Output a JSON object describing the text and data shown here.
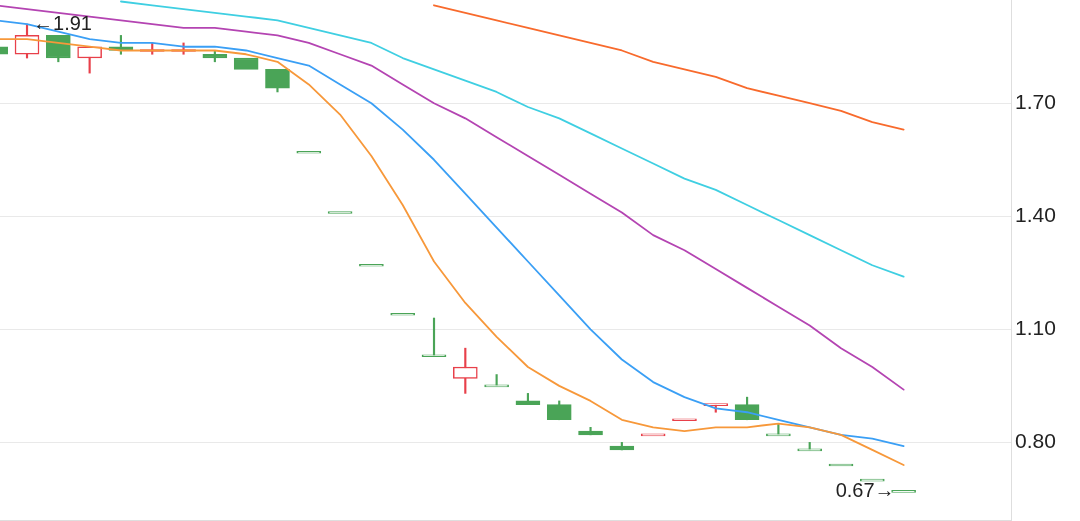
{
  "chart_data": {
    "type": "candlestick",
    "categories": [
      null,
      null,
      null,
      null,
      null,
      null,
      null,
      null,
      null,
      null,
      null,
      null,
      null,
      null,
      null,
      null,
      null,
      null,
      null,
      null,
      null,
      null,
      null,
      null,
      null,
      null,
      null,
      null,
      null,
      null
    ],
    "ohlc": [
      [
        1.85,
        1.85,
        1.83,
        1.83
      ],
      [
        1.83,
        1.91,
        1.82,
        1.88
      ],
      [
        1.88,
        1.88,
        1.81,
        1.82
      ],
      [
        1.82,
        1.85,
        1.78,
        1.85
      ],
      [
        1.85,
        1.88,
        1.83,
        1.84
      ],
      [
        1.84,
        1.86,
        1.83,
        1.84
      ],
      [
        1.84,
        1.86,
        1.83,
        1.84
      ],
      [
        1.83,
        1.84,
        1.81,
        1.82
      ],
      [
        1.82,
        1.82,
        1.79,
        1.79
      ],
      [
        1.79,
        1.79,
        1.73,
        1.74
      ],
      [
        1.57,
        1.57,
        1.57,
        1.57
      ],
      [
        1.41,
        1.41,
        1.41,
        1.41
      ],
      [
        1.27,
        1.27,
        1.27,
        1.27
      ],
      [
        1.14,
        1.14,
        1.14,
        1.14
      ],
      [
        1.03,
        1.13,
        1.03,
        1.03
      ],
      [
        0.97,
        1.05,
        0.93,
        1.0
      ],
      [
        0.95,
        0.98,
        0.95,
        0.95
      ],
      [
        0.91,
        0.93,
        0.9,
        0.9
      ],
      [
        0.9,
        0.91,
        0.86,
        0.86
      ],
      [
        0.83,
        0.84,
        0.82,
        0.82
      ],
      [
        0.79,
        0.8,
        0.78,
        0.78
      ],
      [
        0.82,
        0.82,
        0.82,
        0.82
      ],
      [
        0.86,
        0.86,
        0.86,
        0.86
      ],
      [
        0.9,
        0.9,
        0.88,
        0.9
      ],
      [
        0.9,
        0.92,
        0.86,
        0.86
      ],
      [
        0.82,
        0.85,
        0.82,
        0.82
      ],
      [
        0.78,
        0.8,
        0.78,
        0.78
      ],
      [
        0.74,
        0.74,
        0.74,
        0.74
      ],
      [
        0.7,
        0.7,
        0.7,
        0.7
      ],
      [
        0.67,
        0.67,
        0.67,
        0.67
      ]
    ],
    "colors": [
      "#4aa457",
      "#e8404a",
      "#4aa457",
      "#e8404a",
      "#4aa457",
      "#e8404a",
      "#e8404a",
      "#4aa457",
      "#4aa457",
      "#4aa457",
      "#4aa457",
      "#4aa457",
      "#4aa457",
      "#4aa457",
      "#4aa457",
      "#e8404a",
      "#4aa457",
      "#4aa457",
      "#4aa457",
      "#4aa457",
      "#4aa457",
      "#e8404a",
      "#e8404a",
      "#e8404a",
      "#4aa457",
      "#4aa457",
      "#4aa457",
      "#4aa457",
      "#4aa457",
      "#4aa457"
    ],
    "series": [
      {
        "type": "line",
        "color": "#f7983a",
        "values": [
          1.87,
          1.87,
          1.86,
          1.85,
          1.84,
          1.84,
          1.84,
          1.84,
          1.83,
          1.81,
          1.75,
          1.67,
          1.56,
          1.43,
          1.28,
          1.17,
          1.08,
          1.0,
          0.95,
          0.91,
          0.86,
          0.84,
          0.83,
          0.84,
          0.84,
          0.85,
          0.84,
          0.82,
          0.78,
          0.74
        ]
      },
      {
        "type": "line",
        "color": "#3a9ff5",
        "values": [
          1.92,
          1.91,
          1.89,
          1.87,
          1.86,
          1.86,
          1.85,
          1.85,
          1.84,
          1.82,
          1.8,
          1.75,
          1.7,
          1.63,
          1.55,
          1.46,
          1.37,
          1.28,
          1.19,
          1.1,
          1.02,
          0.96,
          0.92,
          0.89,
          0.88,
          0.86,
          0.84,
          0.82,
          0.81,
          0.79
        ]
      },
      {
        "type": "line",
        "color": "#b444b2",
        "values": [
          1.96,
          1.95,
          1.94,
          1.93,
          1.92,
          1.91,
          1.9,
          1.9,
          1.89,
          1.88,
          1.86,
          1.83,
          1.8,
          1.75,
          1.7,
          1.66,
          1.61,
          1.56,
          1.51,
          1.46,
          1.41,
          1.35,
          1.31,
          1.26,
          1.21,
          1.16,
          1.11,
          1.05,
          1.0,
          0.94
        ]
      },
      {
        "type": "line",
        "color": "#3fcfe2",
        "values": [
          null,
          null,
          null,
          null,
          1.97,
          1.96,
          1.95,
          1.94,
          1.93,
          1.92,
          1.9,
          1.88,
          1.86,
          1.82,
          1.79,
          1.76,
          1.73,
          1.69,
          1.66,
          1.62,
          1.58,
          1.54,
          1.5,
          1.47,
          1.43,
          1.39,
          1.35,
          1.31,
          1.27,
          1.24
        ]
      },
      {
        "type": "line",
        "color": "#f86a2c",
        "values": [
          null,
          null,
          null,
          null,
          null,
          null,
          null,
          null,
          null,
          null,
          null,
          null,
          null,
          null,
          1.96,
          1.94,
          1.92,
          1.9,
          1.88,
          1.86,
          1.84,
          1.81,
          1.79,
          1.77,
          1.74,
          1.72,
          1.7,
          1.68,
          1.65,
          1.63
        ]
      }
    ],
    "ylim": [
      0.594,
      1.974
    ],
    "yticks": [
      {
        "value": 0.8,
        "label": "0.80"
      },
      {
        "value": 1.1,
        "label": "1.10"
      },
      {
        "value": 1.4,
        "label": "1.40"
      },
      {
        "value": 1.7,
        "label": "1.70"
      }
    ],
    "grid": "y",
    "tick_labels": "y",
    "annotations": [
      "←1.91",
      "0.67→"
    ]
  }
}
